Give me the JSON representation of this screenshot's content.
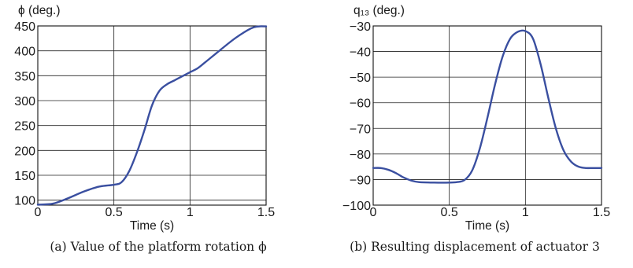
{
  "chart_data": [
    {
      "type": "line",
      "ylabel": "ϕ (deg.)",
      "xlabel": "Time (s)",
      "caption": "(a) Value of the platform rotation ϕ",
      "xlim": [
        0,
        1.5
      ],
      "ylim": [
        90,
        450
      ],
      "xticks": [
        "0",
        "0.5",
        "1",
        "1.5"
      ],
      "xtick_values": [
        0,
        0.5,
        1,
        1.5
      ],
      "yticks": [
        "100",
        "150",
        "200",
        "250",
        "300",
        "350",
        "400",
        "450"
      ],
      "ytick_values": [
        100,
        150,
        200,
        250,
        300,
        350,
        400,
        450
      ],
      "grid": true,
      "line_color": "#3a4fa0",
      "series": [
        {
          "x": [
            0,
            0.1,
            0.2,
            0.3,
            0.4,
            0.5,
            0.55,
            0.6,
            0.65,
            0.7,
            0.75,
            0.8,
            0.85,
            0.9,
            0.95,
            1.0,
            1.05,
            1.1,
            1.2,
            1.3,
            1.4,
            1.45,
            1.5
          ],
          "y": [
            91,
            93,
            104,
            117,
            127,
            131,
            136,
            158,
            195,
            240,
            290,
            320,
            333,
            341,
            349,
            357,
            365,
            377,
            402,
            426,
            445,
            449,
            449
          ]
        }
      ]
    },
    {
      "type": "line",
      "ylabel": "q₁₃ (deg.)",
      "xlabel": "Time (s)",
      "caption": "(b) Resulting displacement of actuator 3",
      "xlim": [
        0,
        1.5
      ],
      "ylim": [
        -100,
        -30
      ],
      "xticks": [
        "0",
        "0.5",
        "1",
        "1.5"
      ],
      "xtick_values": [
        0,
        0.5,
        1,
        1.5
      ],
      "yticks": [
        "−100",
        "−90",
        "−80",
        "−70",
        "−60",
        "−50",
        "−40",
        "−30"
      ],
      "ytick_values": [
        -100,
        -90,
        -80,
        -70,
        -60,
        -50,
        -40,
        -30
      ],
      "grid": true,
      "line_color": "#3a4fa0",
      "series": [
        {
          "x": [
            0,
            0.05,
            0.1,
            0.15,
            0.2,
            0.25,
            0.3,
            0.4,
            0.5,
            0.55,
            0.6,
            0.65,
            0.7,
            0.75,
            0.8,
            0.85,
            0.9,
            0.95,
            1.0,
            1.05,
            1.1,
            1.15,
            1.2,
            1.25,
            1.3,
            1.35,
            1.4,
            1.45,
            1.5
          ],
          "y": [
            -85.5,
            -85.5,
            -86.2,
            -87.5,
            -89.2,
            -90.4,
            -91.0,
            -91.2,
            -91.2,
            -91.0,
            -90.2,
            -86.5,
            -78.0,
            -66.0,
            -53.0,
            -42.0,
            -35.0,
            -32.3,
            -32.0,
            -35.0,
            -45.0,
            -58.0,
            -70.0,
            -78.5,
            -83.0,
            -85.0,
            -85.5,
            -85.5,
            -85.5
          ]
        }
      ]
    }
  ]
}
